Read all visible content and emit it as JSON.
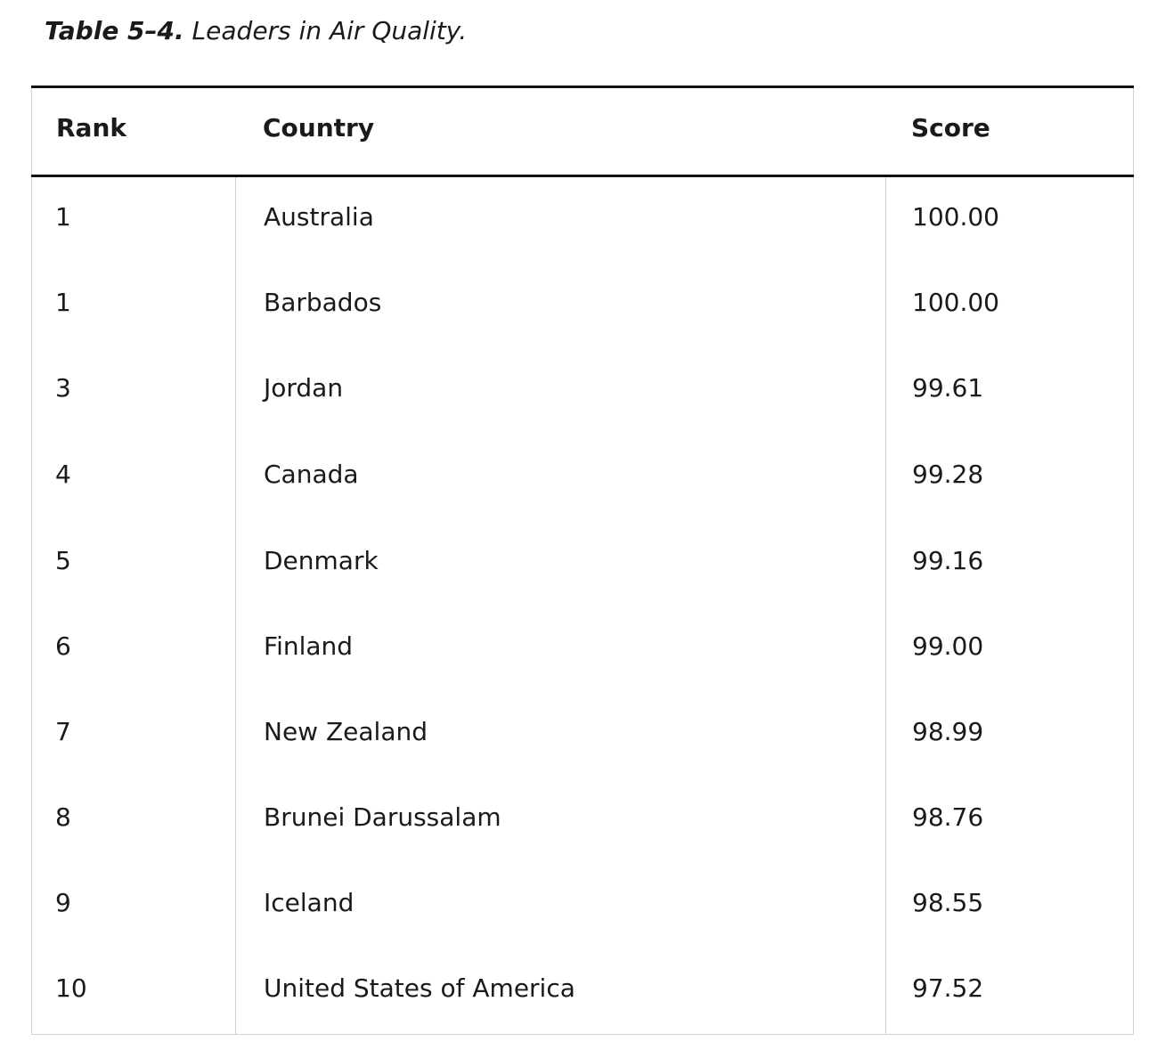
{
  "caption": {
    "label": "Table 5–4.",
    "text": " Leaders in Air Quality."
  },
  "table": {
    "headers": [
      "Rank",
      "Country",
      "Score"
    ],
    "rows": [
      {
        "rank": "1",
        "country": "Australia",
        "score": "100.00"
      },
      {
        "rank": "1",
        "country": "Barbados",
        "score": "100.00"
      },
      {
        "rank": "3",
        "country": "Jordan",
        "score": "99.61"
      },
      {
        "rank": "4",
        "country": "Canada",
        "score": "99.28"
      },
      {
        "rank": "5",
        "country": "Denmark",
        "score": "99.16"
      },
      {
        "rank": "6",
        "country": "Finland",
        "score": "99.00"
      },
      {
        "rank": "7",
        "country": "New Zealand",
        "score": "98.99"
      },
      {
        "rank": "8",
        "country": "Brunei Darussalam",
        "score": "98.76"
      },
      {
        "rank": "9",
        "country": "Iceland",
        "score": "98.55"
      },
      {
        "rank": "10",
        "country": "United States of America",
        "score": "97.52"
      }
    ]
  }
}
